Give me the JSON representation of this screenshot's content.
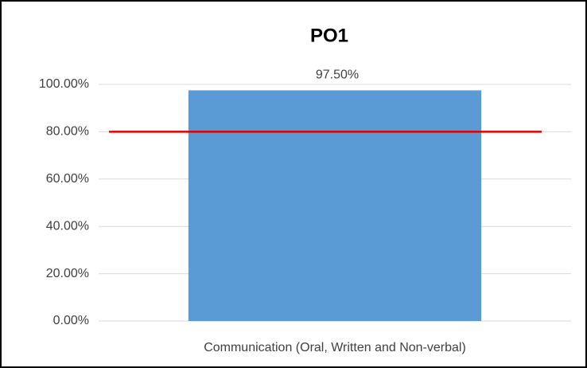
{
  "chart_data": {
    "type": "bar",
    "title": "PO1",
    "categories": [
      "Communication (Oral, Written and Non-verbal)"
    ],
    "values": [
      97.5
    ],
    "value_labels": [
      "97.50%"
    ],
    "color": "#5b9bd5",
    "reference_line": {
      "value": 80,
      "color": "#e00000"
    },
    "ylim": [
      0,
      100
    ],
    "yticks": [
      {
        "value": 0,
        "label": "0.00%"
      },
      {
        "value": 20,
        "label": "20.00%"
      },
      {
        "value": 40,
        "label": "40.00%"
      },
      {
        "value": 60,
        "label": "60.00%"
      },
      {
        "value": 80,
        "label": "80.00%"
      },
      {
        "value": 100,
        "label": "100.00%"
      }
    ],
    "grid": true
  }
}
